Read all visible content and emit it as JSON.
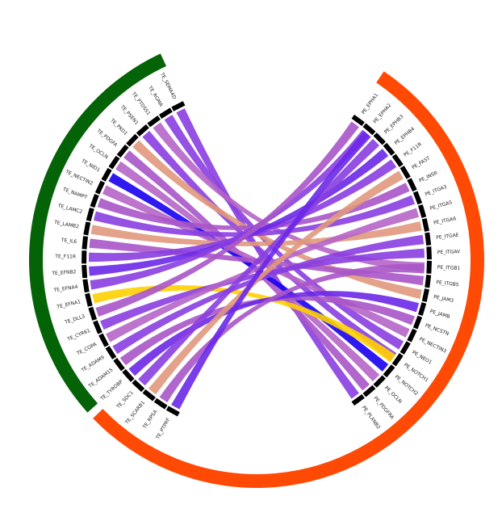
{
  "chart_data": {
    "type": "chord",
    "left_labels": [
      "TE_SEMA4D",
      "TE_RGMA",
      "TE_PTDSS1",
      "TE_PSEN1",
      "TE_PKD1",
      "TE_PDGFA",
      "TE_OCLN",
      "TE_NID1",
      "TE_NECTIN2",
      "TE_NAMPT",
      "TE_LAMC2",
      "TE_LAMB2",
      "TE_IL6",
      "TE_F11R",
      "TE_EFNB2",
      "TE_EFNA4",
      "TE_EFNA1",
      "TE_DLL3",
      "TE_CYR61",
      "TE_COPA",
      "TE_ADAM9",
      "TE_ADAM15",
      "TE_TYROBP",
      "TE_SDC1",
      "TE_SCARB1",
      "TE_RPSA",
      "TE_PTPRF"
    ],
    "right_labels": [
      "PE_EPHA1",
      "PE_EPHA2",
      "PE_EPHB3",
      "PE_EPHB4",
      "PE_F11R",
      "PE_FAST",
      "PE_INSR",
      "PE_ITGA3",
      "PE_ITGA5",
      "PE_ITGA6",
      "PE_ITGAE",
      "PE_ITGAV",
      "PE_ITGB1",
      "PE_ITGB5",
      "PE_JAM3",
      "PE_JAMB",
      "PE_NCSTN",
      "PE_NECTIN3",
      "PE_NEO1",
      "PE_NOTCH1",
      "PE_NOTCH2",
      "PE_OCLN",
      "PE_PDGFRA",
      "PE_PLXNB2"
    ],
    "sector_colors": [
      "#046307",
      "#ff4a06"
    ],
    "links": [
      {
        "from": "TE_SEMA4D",
        "to": "PE_PLXNB2",
        "color": "#8a3ee0"
      },
      {
        "from": "TE_RGMA",
        "to": "PE_NEO1",
        "color": "#8a3ee0"
      },
      {
        "from": "TE_PTDSS1",
        "to": "PE_ITGB1",
        "color": "#b565c8"
      },
      {
        "from": "TE_PSEN1",
        "to": "PE_NOTCH1",
        "color": "#8a3ee0"
      },
      {
        "from": "TE_PKD1",
        "to": "PE_JAM3",
        "color": "#e0987c"
      },
      {
        "from": "TE_PDGFA",
        "to": "PE_PDGFRA",
        "color": "#a855c8"
      },
      {
        "from": "TE_OCLN",
        "to": "PE_OCLN",
        "color": "#b565c8"
      },
      {
        "from": "TE_NID1",
        "to": "PE_NOTCH2",
        "color": "#1a00ee"
      },
      {
        "from": "TE_NECTIN2",
        "to": "PE_NECTIN3",
        "color": "#b565c8"
      },
      {
        "from": "TE_NAMPT",
        "to": "PE_INSR",
        "color": "#a855c8"
      },
      {
        "from": "TE_LAMC2",
        "to": "PE_ITGA3",
        "color": "#8a3ee0"
      },
      {
        "from": "TE_LAMB2",
        "to": "PE_ITGA6",
        "color": "#e0987c"
      },
      {
        "from": "TE_IL6",
        "to": "PE_ITGB5",
        "color": "#a855c8"
      },
      {
        "from": "TE_F11R",
        "to": "PE_F11R",
        "color": "#8a3ee0"
      },
      {
        "from": "TE_EFNB2",
        "to": "PE_EPHB4",
        "color": "#6a28e8"
      },
      {
        "from": "TE_EFNA4",
        "to": "PE_EPHA2",
        "color": "#8a3ee0"
      },
      {
        "from": "TE_EFNA1",
        "to": "PE_NOTCH1",
        "color": "#ffd000"
      },
      {
        "from": "TE_DLL3",
        "to": "PE_EPHA1",
        "color": "#a855c8"
      },
      {
        "from": "TE_CYR61",
        "to": "PE_ITGAV",
        "color": "#8a3ee0"
      },
      {
        "from": "TE_COPA",
        "to": "PE_ITGA5",
        "color": "#b565c8"
      },
      {
        "from": "TE_ADAM9",
        "to": "PE_ITGAE",
        "color": "#8a3ee0"
      },
      {
        "from": "TE_ADAM15",
        "to": "PE_NCSTN",
        "color": "#a855c8"
      },
      {
        "from": "TE_TYROBP",
        "to": "PE_JAMB",
        "color": "#6a28e8"
      },
      {
        "from": "TE_SDC1",
        "to": "PE_EPHB3",
        "color": "#8a3ee0"
      },
      {
        "from": "TE_SCARB1",
        "to": "PE_FAST",
        "color": "#e0987c"
      },
      {
        "from": "TE_RPSA",
        "to": "PE_ITGB1",
        "color": "#a855c8"
      },
      {
        "from": "TE_PTPRF",
        "to": "PE_EPHA2",
        "color": "#6a28e8"
      }
    ]
  }
}
